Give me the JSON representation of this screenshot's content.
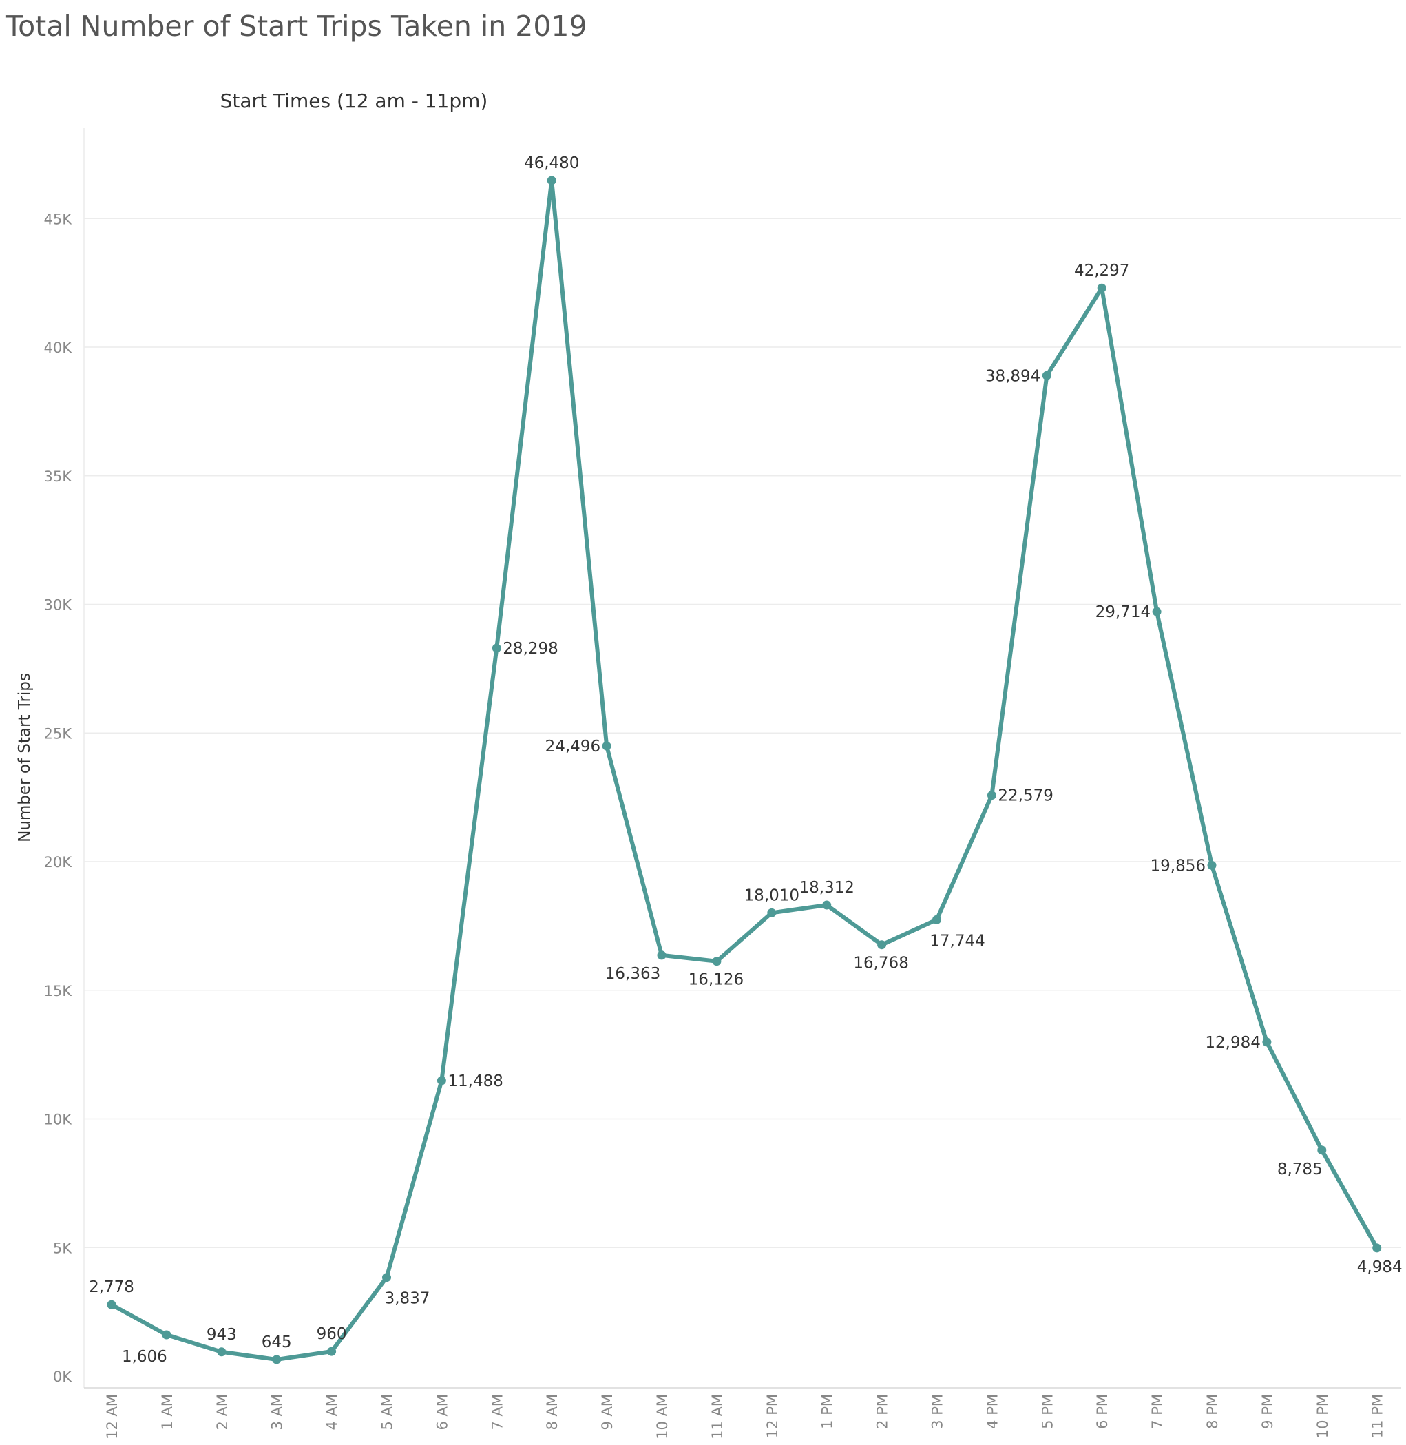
{
  "title": "Total Number of Start Trips Taken in 2019",
  "chart_data": {
    "type": "line",
    "title": "Total Number of Start Trips Taken in 2019",
    "subtitle": "Start Times (12 am - 11pm)",
    "xlabel": "",
    "ylabel": "Number of Start Trips",
    "categories": [
      "12 AM",
      "1 AM",
      "2 AM",
      "3 AM",
      "4 AM",
      "5 AM",
      "6 AM",
      "7 AM",
      "8 AM",
      "9 AM",
      "10 AM",
      "11 AM",
      "12 PM",
      "1 PM",
      "2 PM",
      "3 PM",
      "4 PM",
      "5 PM",
      "6 PM",
      "7 PM",
      "8 PM",
      "9 PM",
      "10 PM",
      "11 PM"
    ],
    "values": [
      2778,
      1606,
      943,
      645,
      960,
      3837,
      11488,
      28298,
      46480,
      24496,
      16363,
      16126,
      18010,
      18312,
      16768,
      17744,
      22579,
      38894,
      42297,
      29714,
      19856,
      12984,
      8785,
      4984
    ],
    "value_labels": [
      "2,778",
      "1,606",
      "943",
      "645",
      "960",
      "3,837",
      "11,488",
      "28,298",
      "46,480",
      "24,496",
      "16,363",
      "16,126",
      "18,010",
      "18,312",
      "16,768",
      "17,744",
      "22,579",
      "38,894",
      "42,297",
      "29,714",
      "19,856",
      "12,984",
      "8,785",
      "4,984"
    ],
    "yticks": [
      0,
      5000,
      10000,
      15000,
      20000,
      25000,
      30000,
      35000,
      40000,
      45000
    ],
    "ytick_labels": [
      "0K",
      "5K",
      "10K",
      "15K",
      "20K",
      "25K",
      "30K",
      "35K",
      "40K",
      "45K"
    ],
    "ylim": [
      0,
      48000
    ],
    "grid": true,
    "legend": "none",
    "line_color": "#4e9a96"
  }
}
